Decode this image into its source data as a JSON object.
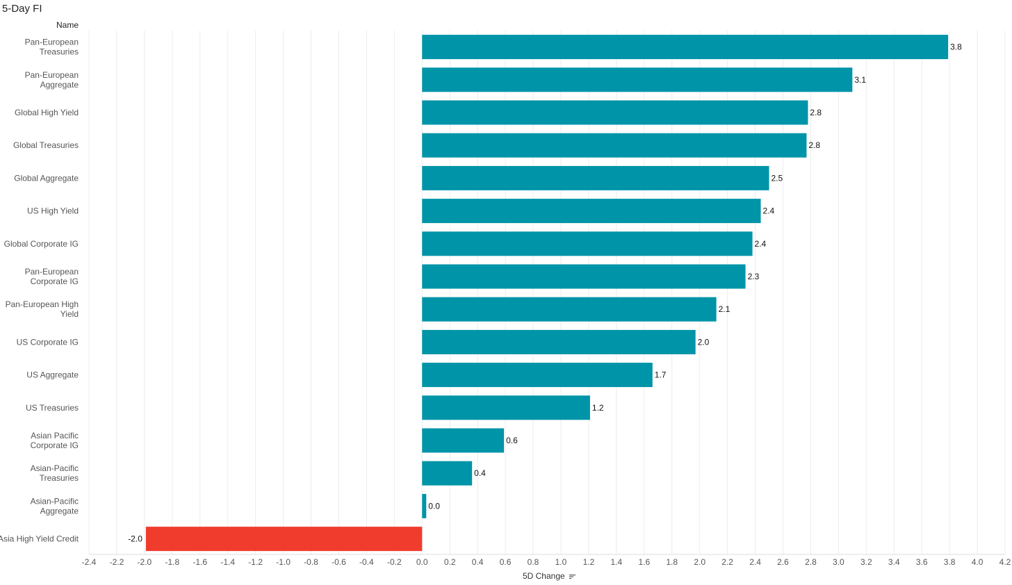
{
  "chart_data": {
    "type": "bar",
    "orientation": "horizontal",
    "title": "5-Day FI",
    "row_header": "Name",
    "xlabel": "5D Change",
    "xlim": [
      -2.4,
      4.2
    ],
    "xticks": [
      -2.4,
      -2.2,
      -2.0,
      -1.8,
      -1.6,
      -1.4,
      -1.2,
      -1.0,
      -0.8,
      -0.6,
      -0.4,
      -0.2,
      0.0,
      0.2,
      0.4,
      0.6,
      0.8,
      1.0,
      1.2,
      1.4,
      1.6,
      1.8,
      2.0,
      2.2,
      2.4,
      2.6,
      2.8,
      3.0,
      3.2,
      3.4,
      3.6,
      3.8,
      4.0,
      4.2
    ],
    "grid": "vertical",
    "categories": [
      [
        "Pan-European",
        "Treasuries"
      ],
      [
        "Pan-European",
        "Aggregate"
      ],
      [
        "Global High Yield"
      ],
      [
        "Global Treasuries"
      ],
      [
        "Global Aggregate"
      ],
      [
        "US High Yield"
      ],
      [
        "Global Corporate IG"
      ],
      [
        "Pan-European",
        "Corporate IG"
      ],
      [
        "Pan-European High",
        "Yield"
      ],
      [
        "US Corporate IG"
      ],
      [
        "US Aggregate"
      ],
      [
        "US Treasuries"
      ],
      [
        "Asian Pacific",
        "Corporate IG"
      ],
      [
        "Asian-Pacific",
        "Treasuries"
      ],
      [
        "Asian-Pacific",
        "Aggregate"
      ],
      [
        "Asia High Yield Credit"
      ]
    ],
    "values": [
      3.79,
      3.1,
      2.78,
      2.77,
      2.5,
      2.44,
      2.38,
      2.33,
      2.12,
      1.97,
      1.66,
      1.21,
      0.59,
      0.36,
      0.03,
      -1.99
    ],
    "value_labels": [
      "3.8",
      "3.1",
      "2.8",
      "2.8",
      "2.5",
      "2.4",
      "2.4",
      "2.3",
      "2.1",
      "2.0",
      "1.7",
      "1.2",
      "0.6",
      "0.4",
      "0.0",
      "-2.0"
    ],
    "colors": {
      "positive": "#0094a8",
      "negative": "#f03c2d",
      "grid": "#ececec"
    }
  }
}
